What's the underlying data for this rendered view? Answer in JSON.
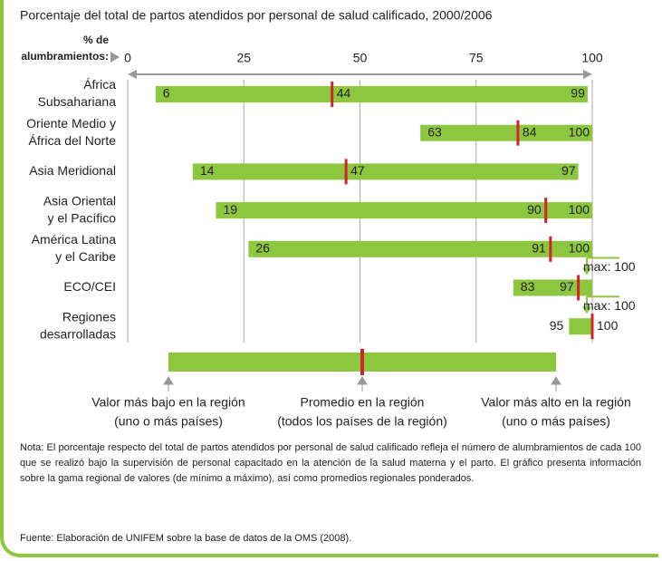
{
  "chart_data": {
    "type": "range",
    "title": "Porcentaje del total de partos atendidos por personal de salud calificado, 2000/2006",
    "x_label": [
      "% de",
      "alumbramientos:"
    ],
    "xlim": [
      0,
      100
    ],
    "xticks": [
      0,
      25,
      50,
      75,
      100
    ],
    "grid": true,
    "categories": [
      [
        "África",
        "Subsahariana"
      ],
      [
        "Oriente Medio y",
        "África del Norte"
      ],
      [
        "Asia Meridional"
      ],
      [
        "Asia Oriental",
        "y el Pacífico"
      ],
      [
        "América Latina",
        "y el Caribe"
      ],
      [
        "ECO/CEI"
      ],
      [
        "Regiones",
        "desarrolladas"
      ]
    ],
    "series": [
      {
        "name": "Valor más bajo en la región",
        "note": "(uno o más países)",
        "color": "#8dc63f",
        "values": [
          6,
          63,
          14,
          19,
          26,
          83,
          95
        ]
      },
      {
        "name": "Promedio en la región",
        "note": "(todos los países de la región)",
        "color": "#d2232a",
        "values": [
          44,
          84,
          47,
          90,
          91,
          97,
          100
        ]
      },
      {
        "name": "Valor más alto en la región",
        "note": "(uno o más países)",
        "color": "#8dc63f",
        "values": [
          99,
          100,
          97,
          100,
          100,
          100,
          100
        ],
        "value_labels": [
          "99",
          "100",
          "97",
          "100",
          "100",
          "max: 100",
          "max: 100"
        ]
      }
    ],
    "note": "Nota: El porcentaje respecto del total de partos atendidos por personal de salud calificado refleja el número de alumbramientos de cada 100 que se realizó bajo la supervisión de personal capacitado en la atención de la salud materna y el parto. El gráfico presenta información sobre la gama regional de valores (de mínimo a máximo), así como promedios regionales ponderados.",
    "source": "Fuente: Elaboración de UNIFEM sobre la base de datos de la OMS (2008)."
  }
}
